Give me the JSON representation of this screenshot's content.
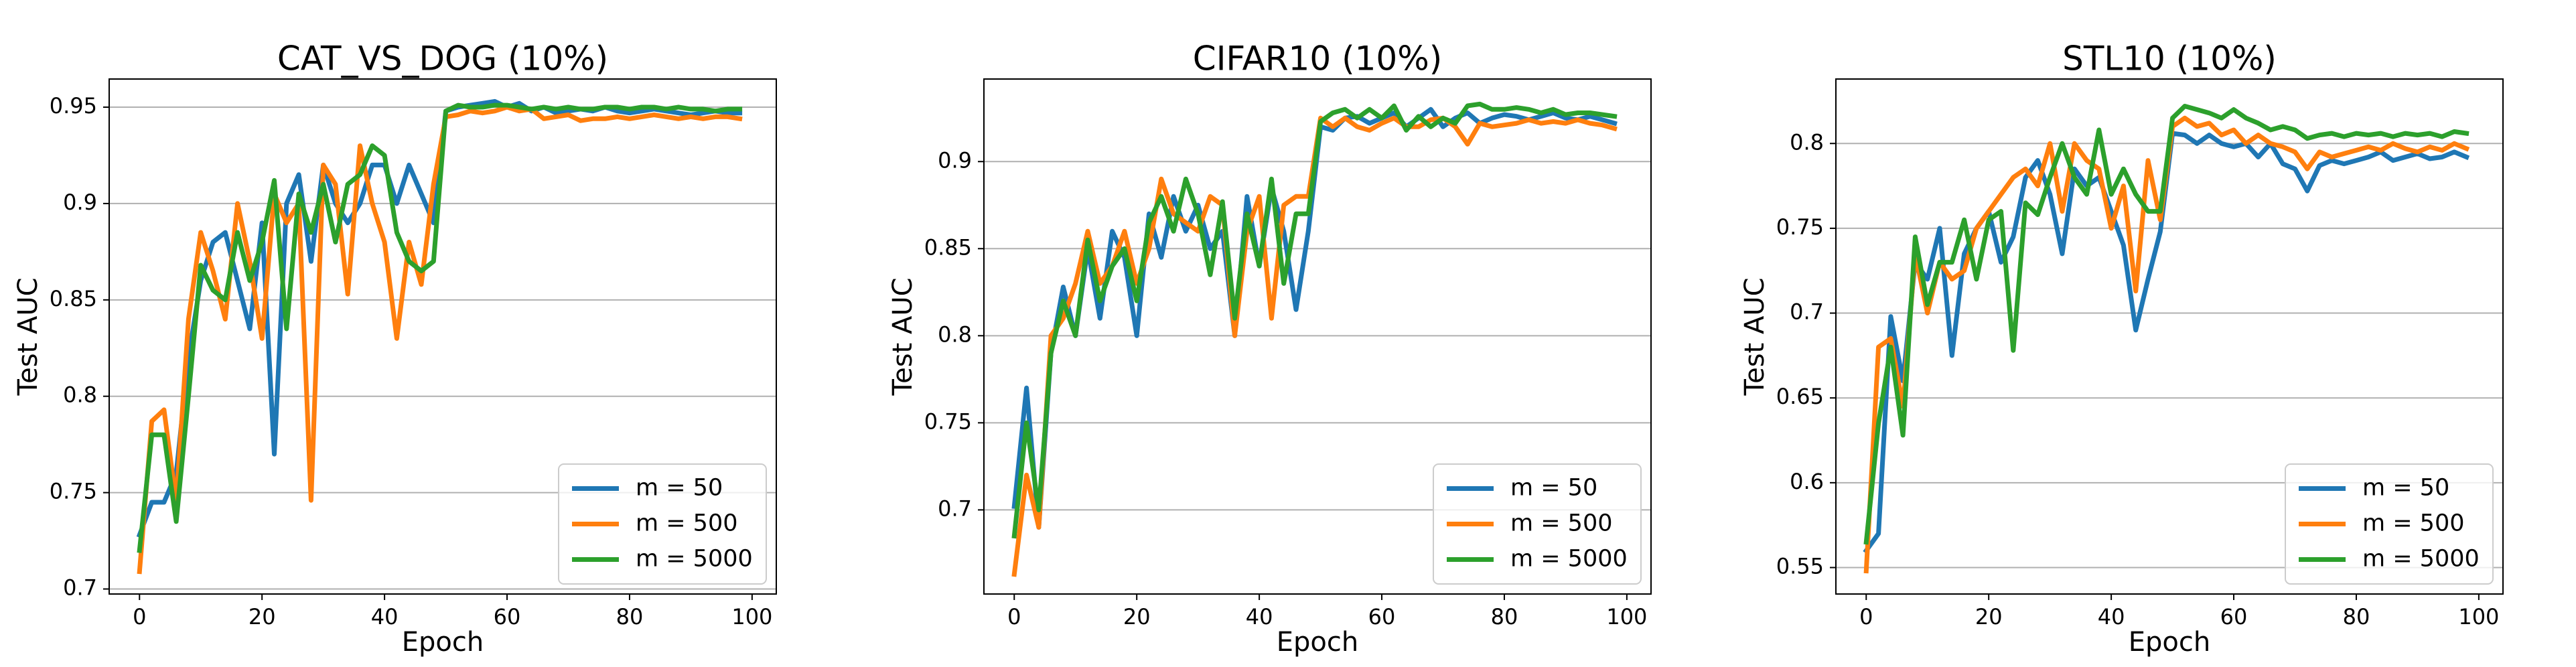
{
  "chart_data": [
    {
      "type": "line",
      "title": "CAT_VS_DOG (10%)",
      "xlabel": "Epoch",
      "ylabel": "Test AUC",
      "grid": "y",
      "legend": "lower right",
      "xlim": [
        -4.95,
        103.95
      ],
      "ylim": [
        0.6974,
        0.9646
      ],
      "xticks": [
        0,
        20,
        40,
        60,
        80,
        100
      ],
      "yticks": [
        0.7,
        0.75,
        0.8,
        0.85,
        0.9,
        0.95
      ],
      "x": [
        0,
        2,
        4,
        6,
        8,
        10,
        12,
        14,
        16,
        18,
        20,
        22,
        24,
        26,
        28,
        30,
        32,
        34,
        36,
        38,
        40,
        42,
        44,
        46,
        48,
        50,
        52,
        54,
        56,
        58,
        60,
        62,
        64,
        66,
        68,
        70,
        72,
        74,
        76,
        78,
        80,
        82,
        84,
        86,
        88,
        90,
        92,
        94,
        96,
        98
      ],
      "series": [
        {
          "name": "m = 50",
          "color": "#1f77b4",
          "values": [
            0.728,
            0.745,
            0.745,
            0.76,
            0.82,
            0.86,
            0.88,
            0.885,
            0.86,
            0.835,
            0.89,
            0.77,
            0.9,
            0.915,
            0.87,
            0.92,
            0.9,
            0.89,
            0.9,
            0.92,
            0.92,
            0.9,
            0.92,
            0.905,
            0.89,
            0.948,
            0.95,
            0.951,
            0.952,
            0.953,
            0.95,
            0.952,
            0.948,
            0.95,
            0.947,
            0.948,
            0.949,
            0.948,
            0.95,
            0.948,
            0.947,
            0.948,
            0.949,
            0.948,
            0.947,
            0.946,
            0.947,
            0.948,
            0.947,
            0.947
          ]
        },
        {
          "name": "m = 500",
          "color": "#ff7f0e",
          "values": [
            0.709,
            0.787,
            0.793,
            0.745,
            0.84,
            0.885,
            0.865,
            0.84,
            0.9,
            0.87,
            0.83,
            0.905,
            0.89,
            0.9,
            0.746,
            0.92,
            0.91,
            0.853,
            0.93,
            0.9,
            0.88,
            0.83,
            0.88,
            0.858,
            0.91,
            0.945,
            0.946,
            0.948,
            0.947,
            0.948,
            0.95,
            0.948,
            0.949,
            0.944,
            0.945,
            0.946,
            0.943,
            0.944,
            0.944,
            0.945,
            0.944,
            0.945,
            0.946,
            0.945,
            0.944,
            0.945,
            0.944,
            0.945,
            0.945,
            0.944
          ]
        },
        {
          "name": "m = 5000",
          "color": "#2ca02c",
          "values": [
            0.72,
            0.78,
            0.78,
            0.735,
            0.8,
            0.868,
            0.855,
            0.85,
            0.885,
            0.86,
            0.88,
            0.912,
            0.835,
            0.905,
            0.885,
            0.91,
            0.88,
            0.91,
            0.915,
            0.93,
            0.925,
            0.885,
            0.87,
            0.865,
            0.87,
            0.948,
            0.951,
            0.95,
            0.95,
            0.951,
            0.951,
            0.95,
            0.949,
            0.95,
            0.949,
            0.95,
            0.949,
            0.949,
            0.95,
            0.95,
            0.949,
            0.95,
            0.95,
            0.949,
            0.95,
            0.949,
            0.949,
            0.948,
            0.949,
            0.949
          ]
        }
      ]
    },
    {
      "type": "line",
      "title": "CIFAR10 (10%)",
      "xlabel": "Epoch",
      "ylabel": "Test AUC",
      "grid": "y",
      "legend": "lower right",
      "xlim": [
        -4.95,
        103.95
      ],
      "ylim": [
        0.6517,
        0.9474
      ],
      "xticks": [
        0,
        20,
        40,
        60,
        80,
        100
      ],
      "yticks": [
        0.7,
        0.75,
        0.8,
        0.85,
        0.9
      ],
      "x": [
        0,
        2,
        4,
        6,
        8,
        10,
        12,
        14,
        16,
        18,
        20,
        22,
        24,
        26,
        28,
        30,
        32,
        34,
        36,
        38,
        40,
        42,
        44,
        46,
        48,
        50,
        52,
        54,
        56,
        58,
        60,
        62,
        64,
        66,
        68,
        70,
        72,
        74,
        76,
        78,
        80,
        82,
        84,
        86,
        88,
        90,
        92,
        94,
        96,
        98
      ],
      "series": [
        {
          "name": "m = 50",
          "color": "#1f77b4",
          "values": [
            0.702,
            0.77,
            0.69,
            0.79,
            0.828,
            0.8,
            0.85,
            0.81,
            0.86,
            0.845,
            0.8,
            0.87,
            0.845,
            0.88,
            0.86,
            0.875,
            0.85,
            0.86,
            0.8,
            0.88,
            0.84,
            0.885,
            0.86,
            0.815,
            0.86,
            0.92,
            0.918,
            0.925,
            0.926,
            0.922,
            0.925,
            0.928,
            0.92,
            0.925,
            0.93,
            0.92,
            0.925,
            0.928,
            0.922,
            0.925,
            0.927,
            0.926,
            0.924,
            0.926,
            0.928,
            0.925,
            0.924,
            0.926,
            0.924,
            0.922
          ]
        },
        {
          "name": "m = 500",
          "color": "#ff7f0e",
          "values": [
            0.663,
            0.72,
            0.69,
            0.8,
            0.81,
            0.83,
            0.86,
            0.83,
            0.84,
            0.86,
            0.83,
            0.85,
            0.89,
            0.87,
            0.865,
            0.86,
            0.88,
            0.875,
            0.8,
            0.86,
            0.88,
            0.81,
            0.875,
            0.88,
            0.88,
            0.925,
            0.92,
            0.925,
            0.92,
            0.918,
            0.922,
            0.925,
            0.92,
            0.92,
            0.924,
            0.925,
            0.92,
            0.91,
            0.922,
            0.92,
            0.921,
            0.922,
            0.924,
            0.922,
            0.923,
            0.922,
            0.924,
            0.922,
            0.921,
            0.919
          ]
        },
        {
          "name": "m = 5000",
          "color": "#2ca02c",
          "values": [
            0.685,
            0.75,
            0.7,
            0.79,
            0.82,
            0.8,
            0.855,
            0.82,
            0.84,
            0.85,
            0.82,
            0.865,
            0.88,
            0.86,
            0.89,
            0.87,
            0.835,
            0.877,
            0.81,
            0.87,
            0.84,
            0.89,
            0.83,
            0.87,
            0.87,
            0.923,
            0.928,
            0.93,
            0.925,
            0.93,
            0.925,
            0.932,
            0.918,
            0.926,
            0.92,
            0.925,
            0.922,
            0.932,
            0.933,
            0.93,
            0.93,
            0.931,
            0.93,
            0.928,
            0.93,
            0.927,
            0.928,
            0.928,
            0.927,
            0.926
          ]
        }
      ]
    },
    {
      "type": "line",
      "title": "STL10 (10%)",
      "xlabel": "Epoch",
      "ylabel": "Test AUC",
      "grid": "y",
      "legend": "lower right",
      "xlim": [
        -4.95,
        103.95
      ],
      "ylim": [
        0.5344,
        0.838
      ],
      "xticks": [
        0,
        20,
        40,
        60,
        80,
        100
      ],
      "yticks": [
        0.55,
        0.6,
        0.65,
        0.7,
        0.75,
        0.8
      ],
      "x": [
        0,
        2,
        4,
        6,
        8,
        10,
        12,
        14,
        16,
        18,
        20,
        22,
        24,
        26,
        28,
        30,
        32,
        34,
        36,
        38,
        40,
        42,
        44,
        46,
        48,
        50,
        52,
        54,
        56,
        58,
        60,
        62,
        64,
        66,
        68,
        70,
        72,
        74,
        76,
        78,
        80,
        82,
        84,
        86,
        88,
        90,
        92,
        94,
        96,
        98
      ],
      "series": [
        {
          "name": "m = 50",
          "color": "#1f77b4",
          "values": [
            0.56,
            0.57,
            0.698,
            0.66,
            0.73,
            0.72,
            0.75,
            0.675,
            0.735,
            0.75,
            0.76,
            0.73,
            0.745,
            0.78,
            0.79,
            0.77,
            0.735,
            0.785,
            0.775,
            0.78,
            0.76,
            0.74,
            0.69,
            0.72,
            0.748,
            0.806,
            0.805,
            0.8,
            0.805,
            0.8,
            0.798,
            0.8,
            0.792,
            0.8,
            0.788,
            0.785,
            0.772,
            0.787,
            0.79,
            0.788,
            0.79,
            0.792,
            0.795,
            0.79,
            0.792,
            0.794,
            0.791,
            0.792,
            0.795,
            0.792
          ]
        },
        {
          "name": "m = 500",
          "color": "#ff7f0e",
          "values": [
            0.548,
            0.68,
            0.685,
            0.645,
            0.735,
            0.7,
            0.73,
            0.72,
            0.725,
            0.75,
            0.76,
            0.77,
            0.78,
            0.785,
            0.775,
            0.8,
            0.76,
            0.8,
            0.79,
            0.785,
            0.75,
            0.775,
            0.713,
            0.79,
            0.755,
            0.81,
            0.815,
            0.81,
            0.812,
            0.805,
            0.808,
            0.8,
            0.805,
            0.8,
            0.798,
            0.795,
            0.785,
            0.795,
            0.792,
            0.794,
            0.796,
            0.798,
            0.796,
            0.8,
            0.797,
            0.795,
            0.798,
            0.796,
            0.8,
            0.797
          ]
        },
        {
          "name": "m = 5000",
          "color": "#2ca02c",
          "values": [
            0.565,
            0.635,
            0.68,
            0.628,
            0.745,
            0.705,
            0.73,
            0.73,
            0.755,
            0.72,
            0.755,
            0.76,
            0.678,
            0.765,
            0.758,
            0.78,
            0.8,
            0.78,
            0.77,
            0.808,
            0.77,
            0.785,
            0.77,
            0.76,
            0.76,
            0.815,
            0.822,
            0.82,
            0.818,
            0.815,
            0.82,
            0.815,
            0.812,
            0.808,
            0.81,
            0.808,
            0.803,
            0.805,
            0.806,
            0.804,
            0.806,
            0.805,
            0.806,
            0.804,
            0.806,
            0.805,
            0.806,
            0.804,
            0.807,
            0.806
          ]
        }
      ]
    }
  ]
}
